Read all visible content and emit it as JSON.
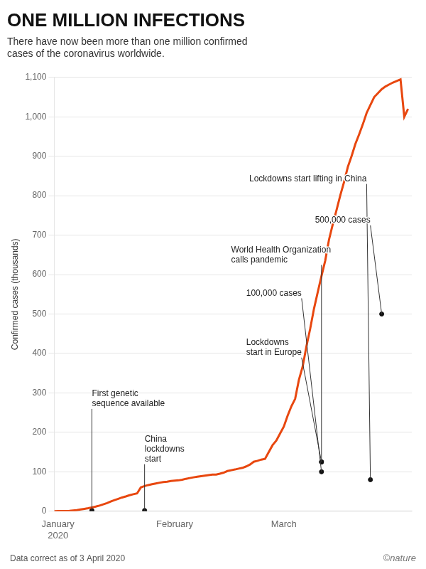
{
  "chart_data": {
    "type": "line",
    "title": "ONE MILLION INFECTIONS",
    "subtitle": "There have now been more than one million confirmed\ncases of the coronavirus worldwide.",
    "ylabel": "Confirmed cases (thousands)",
    "footer": [
      "Data correct as of 3 April 2020",
      "©nature"
    ],
    "color": "#E8470F",
    "grid": "y",
    "xlim": [
      0,
      95
    ],
    "xticks": [
      {
        "value": 1,
        "label": "January\n2020"
      },
      {
        "value": 32,
        "label": "February"
      },
      {
        "value": 61,
        "label": "March"
      }
    ],
    "ylim": [
      0,
      1100
    ],
    "yticks": [
      0,
      100,
      200,
      300,
      400,
      500,
      600,
      700,
      800,
      900,
      {
        "value": 1000,
        "label": "1,000"
      },
      {
        "value": 1100,
        "label": "1,100"
      }
    ],
    "x": [
      0,
      1,
      2,
      3,
      4,
      5,
      6,
      7,
      8,
      9,
      10,
      11,
      12,
      13,
      14,
      15,
      16,
      17,
      18,
      19,
      20,
      21,
      22,
      23,
      24,
      25,
      26,
      27,
      28,
      29,
      30,
      31,
      32,
      33,
      34,
      35,
      36,
      37,
      38,
      39,
      40,
      41,
      42,
      43,
      44,
      45,
      46,
      47,
      48,
      49,
      50,
      51,
      52,
      53,
      54,
      55,
      56,
      57,
      58,
      59,
      60,
      61,
      62,
      63,
      64,
      65,
      66,
      67,
      68,
      69,
      70,
      71,
      72,
      73,
      74,
      75,
      76,
      77,
      78,
      79,
      80,
      81,
      82,
      83,
      84,
      85,
      86,
      87,
      88,
      89,
      90,
      91,
      92,
      93,
      94
    ],
    "values": [
      0.27,
      0.44,
      0.55,
      0.64,
      0.92,
      1.98,
      2.75,
      4.47,
      6.07,
      7.78,
      9.72,
      11.79,
      14.38,
      17.39,
      20.63,
      24.55,
      28.27,
      31.48,
      34.89,
      37.55,
      40.56,
      43.1,
      45.17,
      60.33,
      63.85,
      66.49,
      68.5,
      70.55,
      72.44,
      74.18,
      74.99,
      76.77,
      77.66,
      78.33,
      79.96,
      82.29,
      84.12,
      86.01,
      87.59,
      89.07,
      90.33,
      91.78,
      92.84,
      93.09,
      95.32,
      97.88,
      101.93,
      104.0,
      105.87,
      108.05,
      110.04,
      113.7,
      118.32,
      125.49,
      127.86,
      130.93,
      132.76,
      150.06,
      167.51,
      179.11,
      197.14,
      214.89,
      242.34,
      266.07,
      284.83,
      332.93,
      366.71,
      418.04,
      462.68,
      513.04,
      555.02,
      596.38,
      635.56,
      688.47,
      727.62,
      763.48,
      800.9,
      834.72,
      872.83,
      900.31,
      930.92,
      955.32,
      981.32,
      1010.02,
      1030.0,
      1050.0,
      1060.0,
      1070.0,
      1077.0,
      1082.0,
      1087.0,
      1091.0,
      1095.0,
      1000.0,
      1020.0
    ],
    "annotations": [
      {
        "text": "First genetic\nsequence available",
        "x": 10,
        "y": 310,
        "arrow_x": 10,
        "arrow_y": 2
      },
      {
        "text": "China\nlockdowns\nstart",
        "x": 24,
        "y": 195,
        "arrow_x": 24,
        "arrow_y": 2
      },
      {
        "text": "Lockdowns\nstart in Europe",
        "x": 51,
        "y": 440,
        "arrow_x": 71,
        "arrow_y": 125
      },
      {
        "text": "World Health Organization\ncalls pandemic",
        "x": 47,
        "y": 675,
        "arrow_x": 71,
        "arrow_y": 125
      },
      {
        "text": "100,000 cases",
        "x": 51,
        "y": 565,
        "arrow_x": 71,
        "arrow_y": 100
      },
      {
        "text": "Lockdowns start lifting in China",
        "x": 83,
        "y": 855,
        "arrow_x": 84,
        "arrow_y": 80
      },
      {
        "text": "500,000 cases",
        "x": 84,
        "y": 750,
        "arrow_x": 87,
        "arrow_y": 500
      }
    ]
  }
}
